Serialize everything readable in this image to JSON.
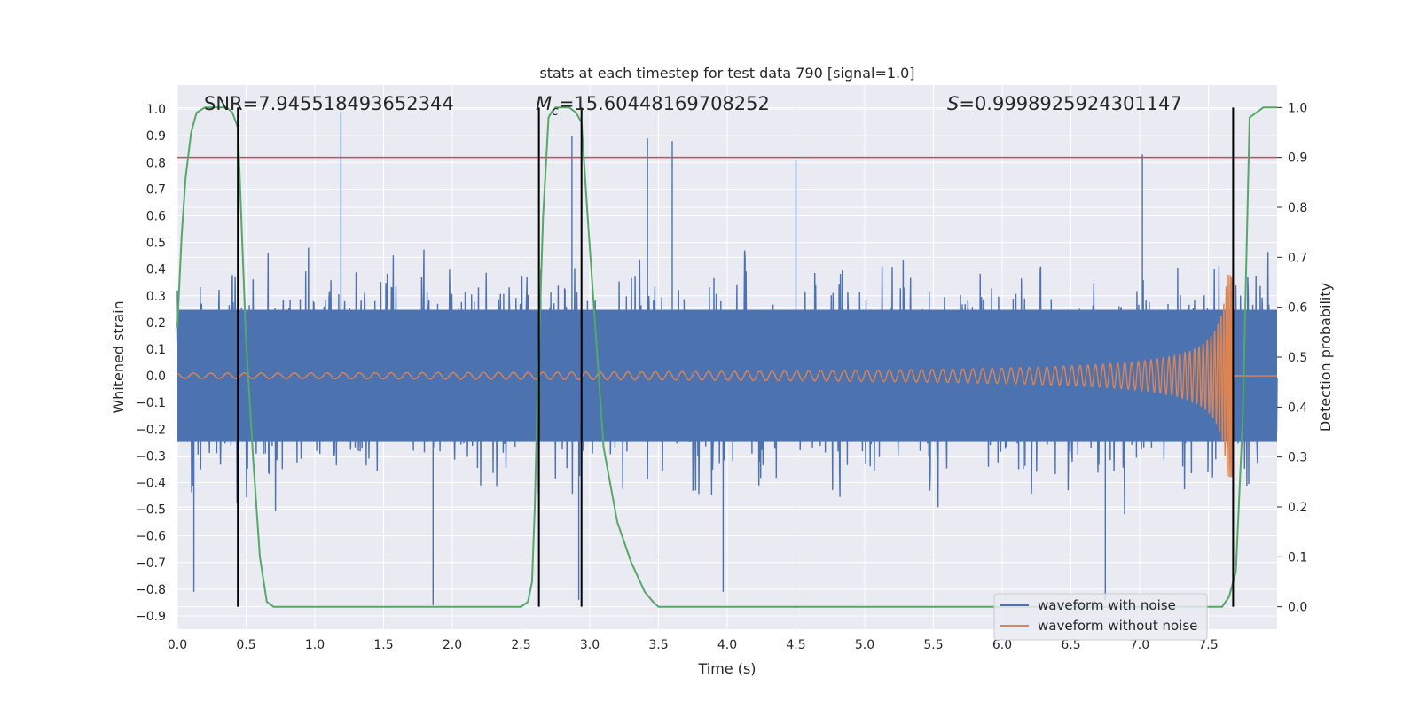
{
  "chart_data": {
    "type": "line",
    "title": "stats at each timestep for test data 790 [signal=1.0]",
    "xlabel": "Time (s)",
    "ylabel": "Whitened strain",
    "y2label": "Detection probability",
    "xlim": [
      0.0,
      8.0
    ],
    "ylim": [
      -0.95,
      1.09
    ],
    "y2lim": [
      -0.045,
      1.045
    ],
    "xticks": [
      "0.0",
      "0.5",
      "1.0",
      "1.5",
      "2.0",
      "2.5",
      "3.0",
      "3.5",
      "4.0",
      "4.5",
      "5.0",
      "5.5",
      "6.0",
      "6.5",
      "7.0",
      "7.5"
    ],
    "yticks": [
      "−0.9",
      "−0.8",
      "−0.7",
      "−0.6",
      "−0.5",
      "−0.4",
      "−0.3",
      "−0.2",
      "−0.1",
      "0.0",
      "0.1",
      "0.2",
      "0.3",
      "0.4",
      "0.5",
      "0.6",
      "0.7",
      "0.8",
      "0.9",
      "1.0"
    ],
    "y2ticks": [
      "0.0",
      "0.1",
      "0.2",
      "0.3",
      "0.4",
      "0.5",
      "0.6",
      "0.7",
      "0.8",
      "0.9",
      "1.0"
    ],
    "annotations": {
      "snr": "SNR=7.945518493652344",
      "mc_symbol": "M",
      "mc_sub": "c",
      "mc_value": "=15.60448169708252",
      "s_symbol": "S",
      "s_value": "=0.9998925924301147"
    },
    "threshold": {
      "value": 0.9,
      "axis": "right",
      "color": "#C44E52"
    },
    "vertical_lines": [
      0.44,
      2.63,
      2.94,
      7.68
    ],
    "grid": true,
    "legend": {
      "position": "lower-right",
      "entries": [
        {
          "label": "waveform with noise",
          "color": "#4C72B0"
        },
        {
          "label": "waveform without noise",
          "color": "#DD8452"
        }
      ]
    },
    "series": [
      {
        "name": "waveform with noise",
        "color": "#4C72B0",
        "axis": "left",
        "typical_range": [
          -0.45,
          0.45
        ],
        "peaks": [
          {
            "x": 0.44,
            "y": 0.95
          },
          {
            "x": 1.19,
            "y": 0.99
          },
          {
            "x": 2.87,
            "y": 0.9
          },
          {
            "x": 3.42,
            "y": 0.89
          },
          {
            "x": 3.6,
            "y": 0.88
          },
          {
            "x": 4.5,
            "y": 0.81
          },
          {
            "x": 7.02,
            "y": 0.83
          },
          {
            "x": 1.86,
            "y": -0.86
          },
          {
            "x": 2.92,
            "y": -0.84
          },
          {
            "x": 0.12,
            "y": -0.81
          },
          {
            "x": 6.75,
            "y": -0.84
          },
          {
            "x": 3.97,
            "y": -0.81
          }
        ]
      },
      {
        "name": "waveform without noise",
        "color": "#DD8452",
        "axis": "left",
        "description": "chirp",
        "chirp": {
          "start": 0.0,
          "end": 7.68,
          "amp_start": 0.01,
          "amp_peak": 0.38
        }
      },
      {
        "name": "detection probability",
        "color": "#55A868",
        "axis": "right",
        "x": [
          0.0,
          0.03,
          0.06,
          0.1,
          0.14,
          0.2,
          0.3,
          0.36,
          0.4,
          0.44,
          0.47,
          0.5,
          0.55,
          0.6,
          0.65,
          0.7,
          1.0,
          1.5,
          2.0,
          2.3,
          2.5,
          2.55,
          2.58,
          2.6,
          2.62,
          2.66,
          2.7,
          2.72,
          2.75,
          2.8,
          2.85,
          2.9,
          2.94,
          2.98,
          3.05,
          3.1,
          3.2,
          3.3,
          3.4,
          3.46,
          3.5,
          3.6,
          4.0,
          5.0,
          6.0,
          7.0,
          7.5,
          7.6,
          7.65,
          7.7,
          7.75,
          7.8,
          7.9,
          8.0
        ],
        "y": [
          0.56,
          0.74,
          0.86,
          0.95,
          0.99,
          1.0,
          1.0,
          1.0,
          0.99,
          0.96,
          0.74,
          0.53,
          0.3,
          0.1,
          0.01,
          0.0,
          0.0,
          0.0,
          0.0,
          0.0,
          0.0,
          0.01,
          0.05,
          0.2,
          0.43,
          0.78,
          0.98,
          0.99,
          1.0,
          1.0,
          1.0,
          0.99,
          0.97,
          0.8,
          0.52,
          0.32,
          0.17,
          0.09,
          0.03,
          0.01,
          0.0,
          0.0,
          0.0,
          0.0,
          0.0,
          0.0,
          0.0,
          0.0,
          0.02,
          0.07,
          0.38,
          0.98,
          1.0,
          1.0
        ]
      }
    ]
  }
}
